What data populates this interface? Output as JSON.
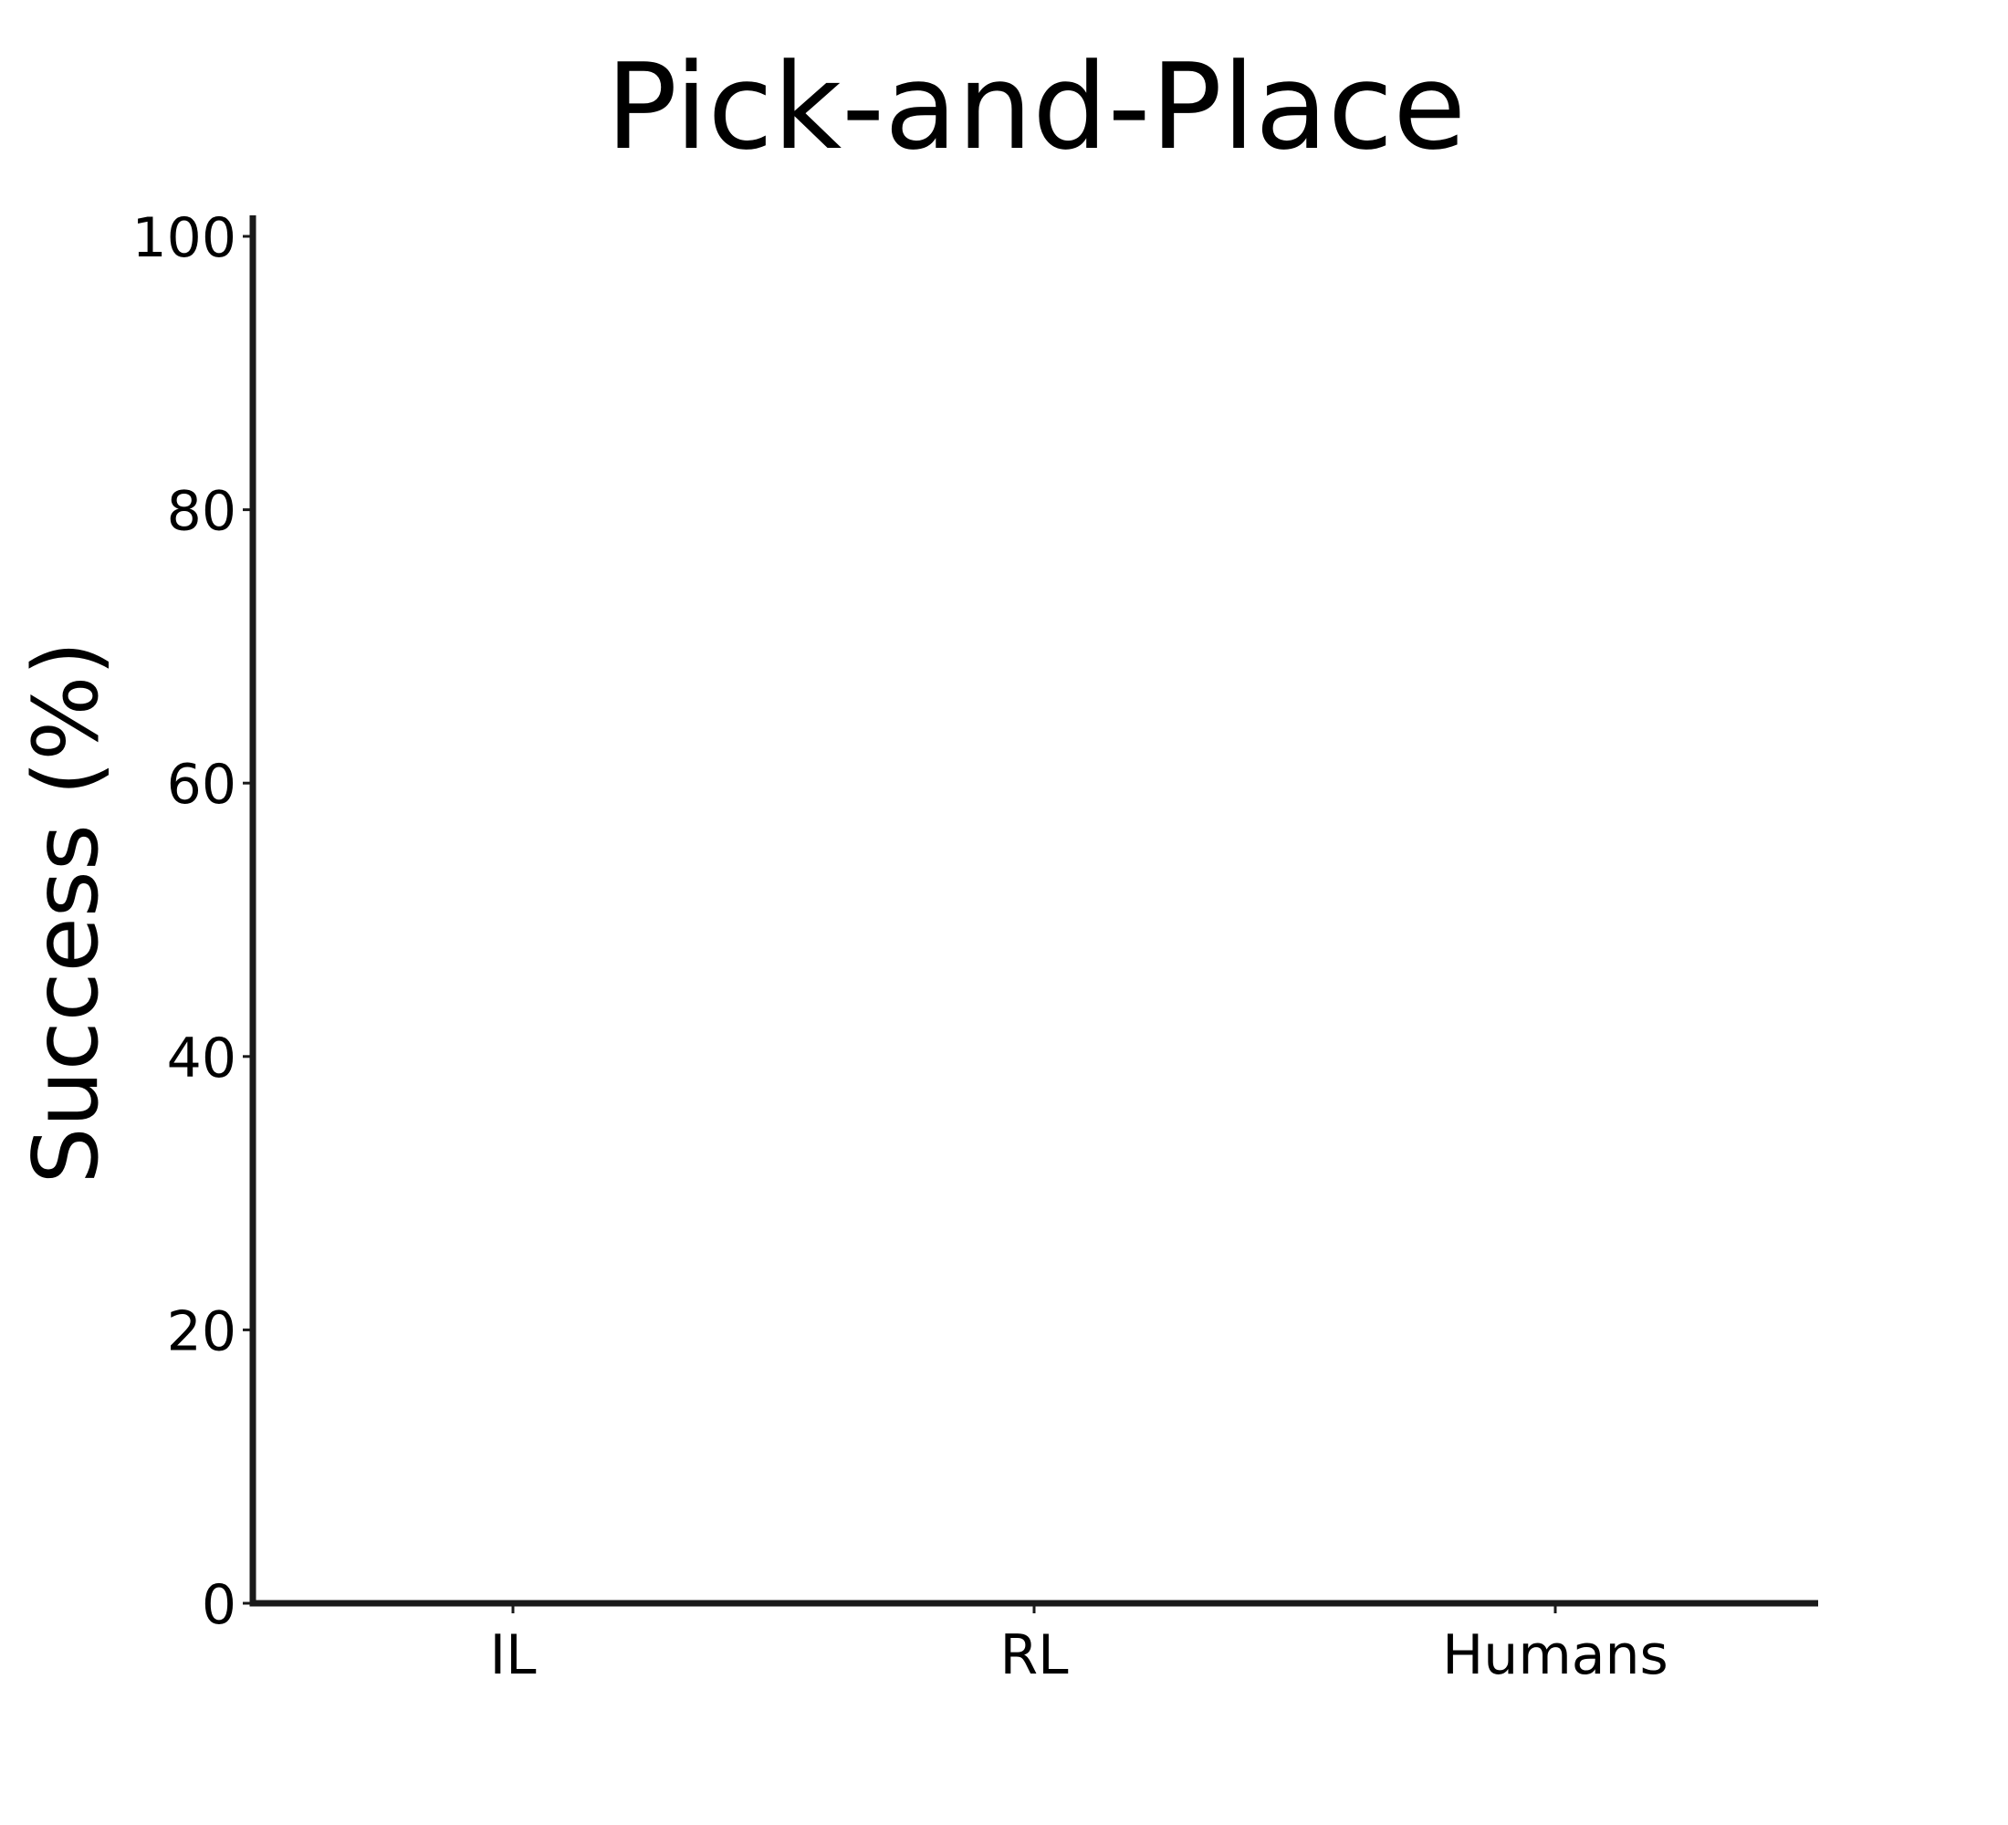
{
  "chart_data": {
    "type": "bar",
    "title": "Pick-and-Place",
    "xlabel": "",
    "ylabel": "Success (%)",
    "categories": [
      "IL",
      "RL",
      "Humans"
    ],
    "values": [
      0,
      0,
      0
    ],
    "ylim": [
      0,
      100
    ],
    "yticks": [
      "0",
      "20",
      "40",
      "60",
      "80",
      "100"
    ],
    "grid": false,
    "legend": "none",
    "colors": {
      "axis": "#1a1a1a",
      "text": "#000000",
      "bar": "#4c72b0"
    }
  }
}
